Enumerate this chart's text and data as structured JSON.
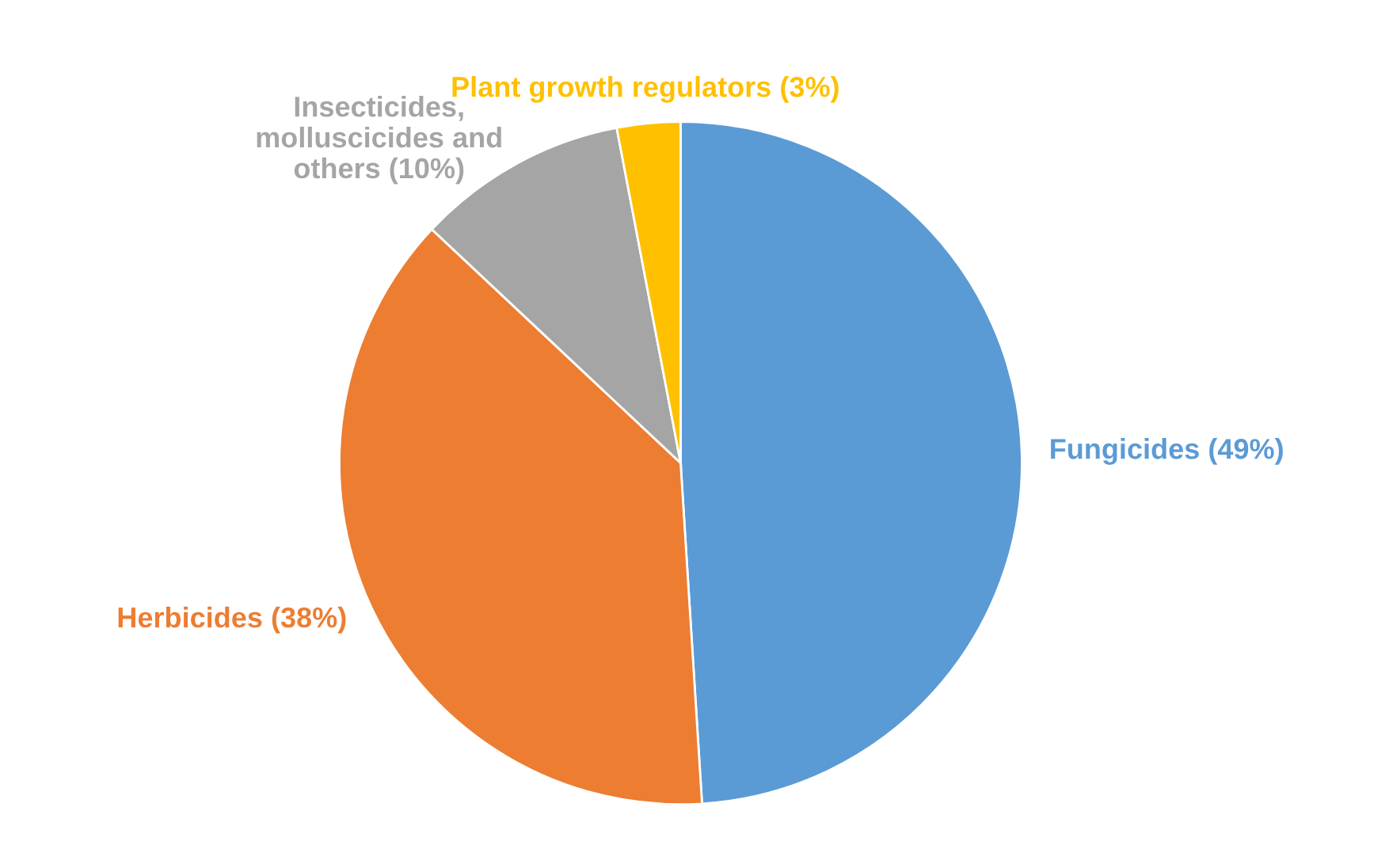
{
  "chart_data": {
    "type": "pie",
    "categories": [
      "Fungicides (49%)",
      "Herbicides (38%)",
      "Insecticides,\nmolluscicides and\nothers (10%)",
      "Plant growth regulators (3%)"
    ],
    "values": [
      49,
      38,
      10,
      3
    ],
    "colors": [
      "#5b9bd5",
      "#ed7d31",
      "#a5a5a5",
      "#ffc000"
    ]
  }
}
